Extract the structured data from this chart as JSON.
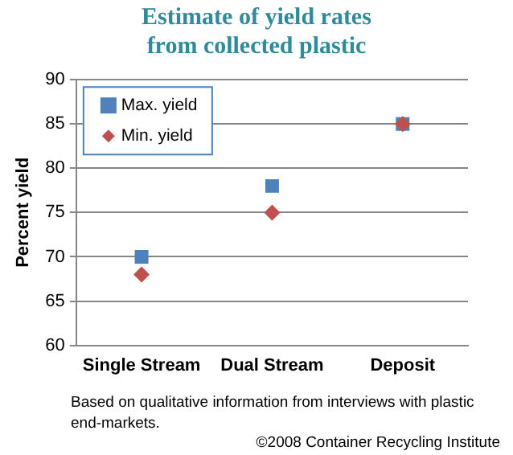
{
  "chart_data": {
    "type": "scatter",
    "title": "Estimate of yield rates from collected plastic",
    "ylabel": "Percent yield",
    "categories": [
      "Single Stream",
      "Dual Stream",
      "Deposit"
    ],
    "series": [
      {
        "name": "Max. yield",
        "color": "#4f81bd",
        "marker": "square",
        "values": [
          70,
          78,
          85
        ]
      },
      {
        "name": "Min. yield",
        "color": "#c0504d",
        "marker": "diamond",
        "values": [
          68,
          75,
          85
        ]
      }
    ],
    "ylim": [
      60,
      90
    ],
    "yticks": [
      60,
      65,
      70,
      75,
      80,
      85,
      90
    ],
    "grid": "y",
    "legend": "top left",
    "annotations": [
      "Based on qualitative information from interviews with plastic end-markets.",
      "©2008 Container Recycling Institute"
    ]
  }
}
